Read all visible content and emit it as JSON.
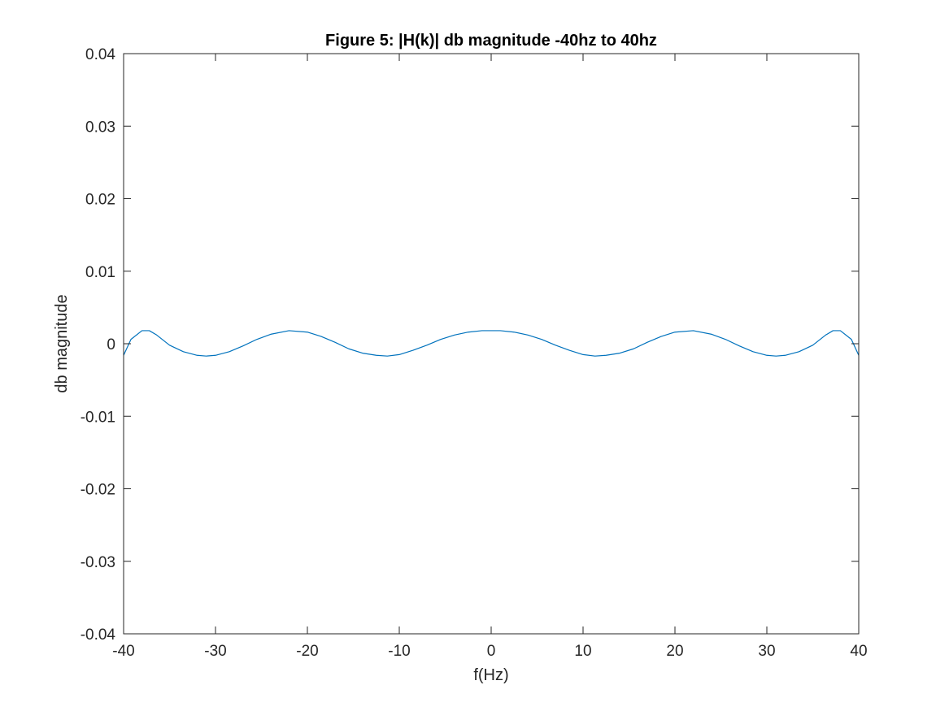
{
  "chart_data": {
    "type": "line",
    "title": "Figure 5: |H(k)| db magnitude -40hz to 40hz",
    "xlabel": "f(Hz)",
    "ylabel": "db magnitude",
    "xlim": [
      -40,
      40
    ],
    "ylim": [
      -0.04,
      0.04
    ],
    "xticks": [
      -40,
      -30,
      -20,
      -10,
      0,
      10,
      20,
      30,
      40
    ],
    "xtick_labels": [
      "-40",
      "-30",
      "-20",
      "-10",
      "0",
      "10",
      "20",
      "30",
      "40"
    ],
    "yticks": [
      -0.04,
      -0.03,
      -0.02,
      -0.01,
      0,
      0.01,
      0.02,
      0.03,
      0.04
    ],
    "ytick_labels": [
      "-0.04",
      "-0.03",
      "-0.02",
      "-0.01",
      "0",
      "0.01",
      "0.02",
      "0.03",
      "0.04"
    ],
    "grid": false,
    "series": [
      {
        "color": "#0072bd",
        "x": [
          -40,
          -39.2,
          -38,
          -37.2,
          -36.4,
          -35,
          -33.5,
          -32,
          -31,
          -30,
          -28.5,
          -27,
          -25.5,
          -24,
          -22,
          -20,
          -18.5,
          -17,
          -15.5,
          -14,
          -12.5,
          -11.3,
          -10,
          -8.5,
          -7,
          -5.5,
          -4,
          -2.5,
          -1,
          0,
          1,
          2.5,
          4,
          5.5,
          7,
          8.5,
          10,
          11.3,
          12.5,
          14,
          15.5,
          17,
          18.5,
          20,
          22,
          24,
          25.5,
          27,
          28.5,
          30,
          31,
          32,
          33.5,
          35,
          36.4,
          37.2,
          38,
          39.2,
          40
        ],
        "y": [
          -0.0016,
          0.0006,
          0.0018,
          0.0018,
          0.0012,
          -0.0002,
          -0.0011,
          -0.0016,
          -0.0017,
          -0.0016,
          -0.0011,
          -0.0003,
          0.0006,
          0.0013,
          0.0018,
          0.0016,
          0.001,
          0.0002,
          -0.0007,
          -0.0013,
          -0.0016,
          -0.0017,
          -0.0015,
          -0.0009,
          -0.0002,
          0.0006,
          0.0012,
          0.0016,
          0.0018,
          0.0018,
          0.0018,
          0.0016,
          0.0012,
          0.0006,
          -0.0002,
          -0.0009,
          -0.0015,
          -0.0017,
          -0.0016,
          -0.0013,
          -0.0007,
          0.0002,
          0.001,
          0.0016,
          0.0018,
          0.0013,
          0.0006,
          -0.0003,
          -0.0011,
          -0.0016,
          -0.0017,
          -0.0016,
          -0.0011,
          -0.0002,
          0.0012,
          0.0018,
          0.0018,
          0.0006,
          -0.0016
        ]
      }
    ]
  }
}
